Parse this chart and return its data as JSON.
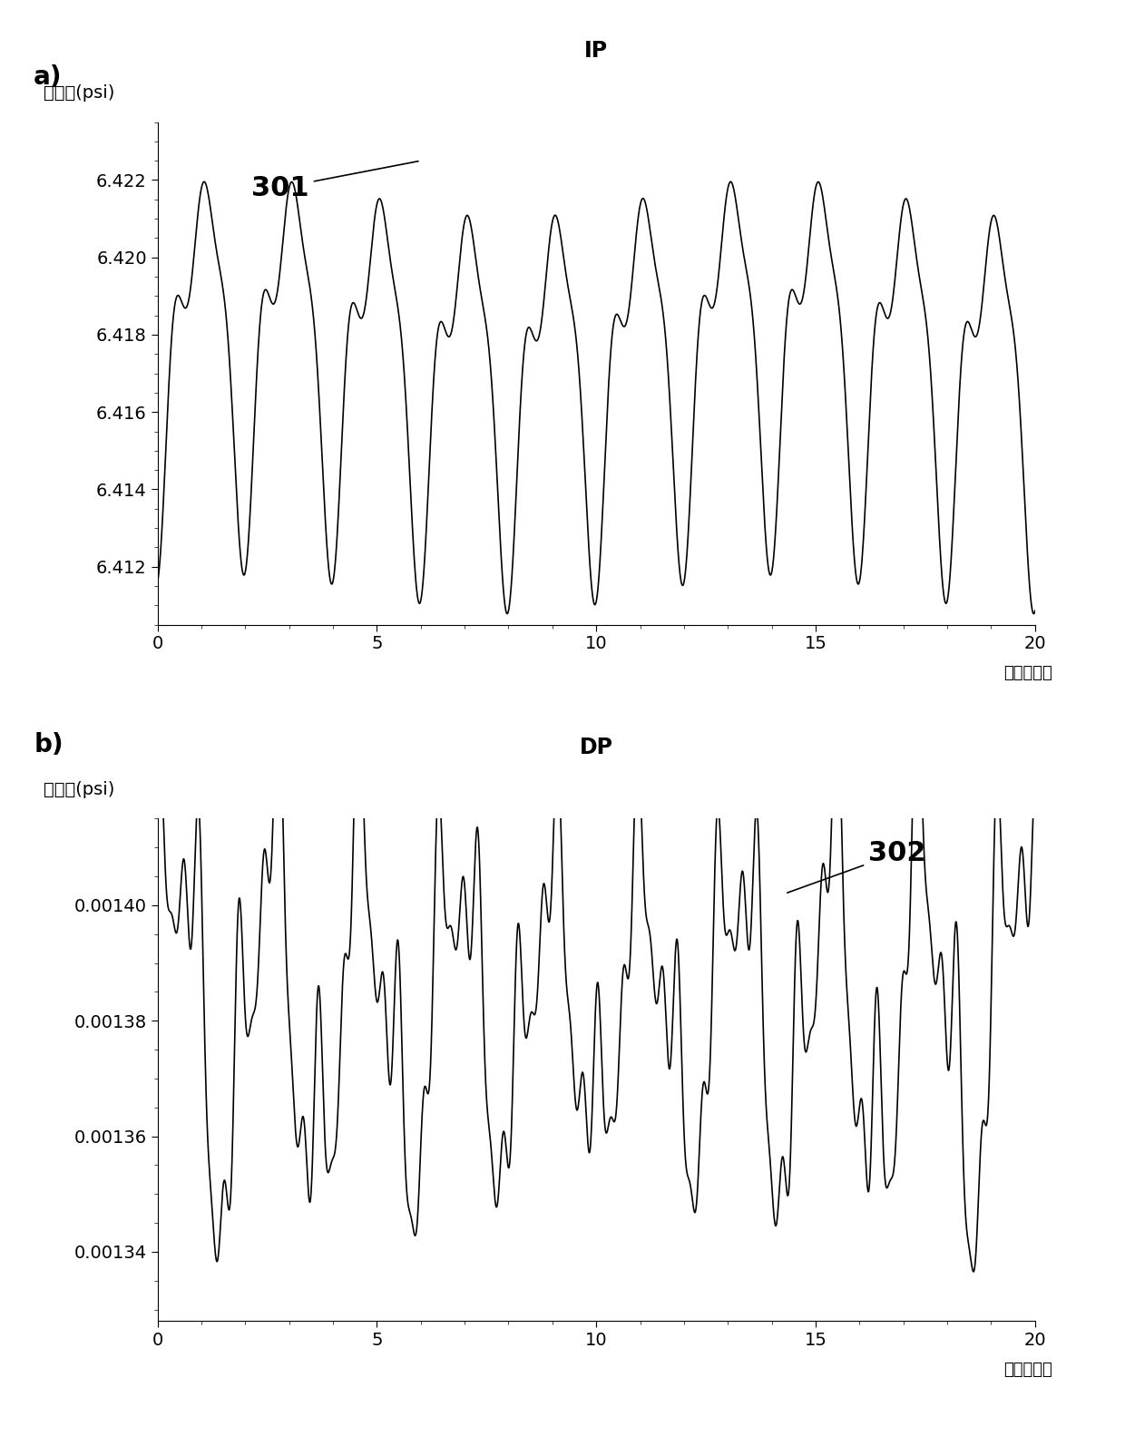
{
  "title_a": "IP",
  "title_b": "DP",
  "label_a": "a)",
  "label_b": "b)",
  "xlabel": "时间（秒）",
  "ylabel_chinese": "压力",
  "ylabel_psi": "(psi)",
  "annotation_a": "301",
  "annotation_b": "302",
  "xlim": [
    0,
    20
  ],
  "ylim_a": [
    6.4105,
    6.4235
  ],
  "ylim_b": [
    0.001328,
    0.001415
  ],
  "yticks_a": [
    6.412,
    6.414,
    6.416,
    6.418,
    6.42,
    6.422
  ],
  "yticks_b": [
    0.00134,
    0.00136,
    0.00138,
    0.0014
  ],
  "xticks": [
    0,
    5,
    10,
    15,
    20
  ],
  "line_color": "#000000",
  "bg_color": "#ffffff",
  "fig_width": 12.4,
  "fig_height": 15.83
}
